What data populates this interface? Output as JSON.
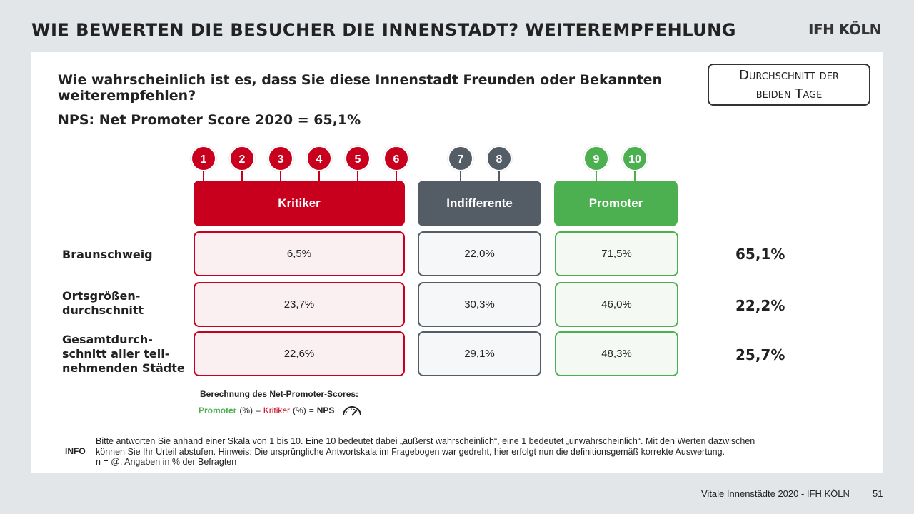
{
  "header": {
    "title": "WIE BEWERTEN DIE BESUCHER DIE INNENSTADT? WEITEREMPFEHLUNG",
    "logo": "IFH KÖLN"
  },
  "question": "Wie wahrscheinlich ist es, dass Sie diese Innenstadt Freunden oder Bekannten weiterempfehlen?",
  "nps_line": "NPS: Net Promoter Score 2020 = 65,1%",
  "average_box": {
    "line1": "Durchschnitt der",
    "line2": "beiden Tage"
  },
  "colors": {
    "kritiker": "#c8001e",
    "indifferente": "#545c66",
    "promoter": "#4caf50"
  },
  "chart_data": {
    "type": "table",
    "scale": [
      "1",
      "2",
      "3",
      "4",
      "5",
      "6",
      "7",
      "8",
      "9",
      "10"
    ],
    "groups": [
      {
        "name": "Kritiker",
        "scale_range": [
          "1",
          "6"
        ]
      },
      {
        "name": "Indifferente",
        "scale_range": [
          "7",
          "8"
        ]
      },
      {
        "name": "Promoter",
        "scale_range": [
          "9",
          "10"
        ]
      }
    ],
    "rows": [
      {
        "label": "Braunschweig",
        "kritiker": "6,5%",
        "indifferente": "22,0%",
        "promoter": "71,5%",
        "nps": "65,1%"
      },
      {
        "label": "Ortsgrößen-durchschnitt",
        "kritiker": "23,7%",
        "indifferente": "30,3%",
        "promoter": "46,0%",
        "nps": "22,2%"
      },
      {
        "label": "Gesamtdurch-schnitt aller teil-nehmenden Städte",
        "kritiker": "22,6%",
        "indifferente": "29,1%",
        "promoter": "48,3%",
        "nps": "25,7%"
      }
    ],
    "nps_values": [
      65.1,
      22.2,
      25.7
    ]
  },
  "row_label_lines": [
    [
      "Braunschweig"
    ],
    [
      "Ortsgrößen-",
      "durchschnitt"
    ],
    [
      "Gesamtdurch-",
      "schnitt aller teil-",
      "nehmenden Städte"
    ]
  ],
  "calc": {
    "title": "Berechnung des Net-Promoter-Scores:",
    "promoter": "Promoter",
    "pct1": "(%)",
    "minus": "–",
    "kritiker": "Kritiker",
    "pct2": "(%)",
    "equals": "=",
    "nps": "NPS",
    "icon": "speedometer-icon"
  },
  "info": {
    "label": "INFO",
    "line1": "Bitte antworten Sie anhand einer Skala von 1 bis 10. Eine 10 bedeutet dabei „äußerst wahrscheinlich“, eine 1 bedeutet „unwahrscheinlich“. Mit den Werten dazwischen",
    "line2": "können Sie Ihr Urteil abstufen. Hinweis: Die ursprüngliche Antwortskala im Fragebogen war gedreht, hier erfolgt nun die definitionsgemäß korrekte Auswertung.",
    "line3": "n = @, Angaben in % der Befragten"
  },
  "footer": {
    "source": "Vitale Innenstädte 2020 - IFH KÖLN",
    "page": "51"
  }
}
